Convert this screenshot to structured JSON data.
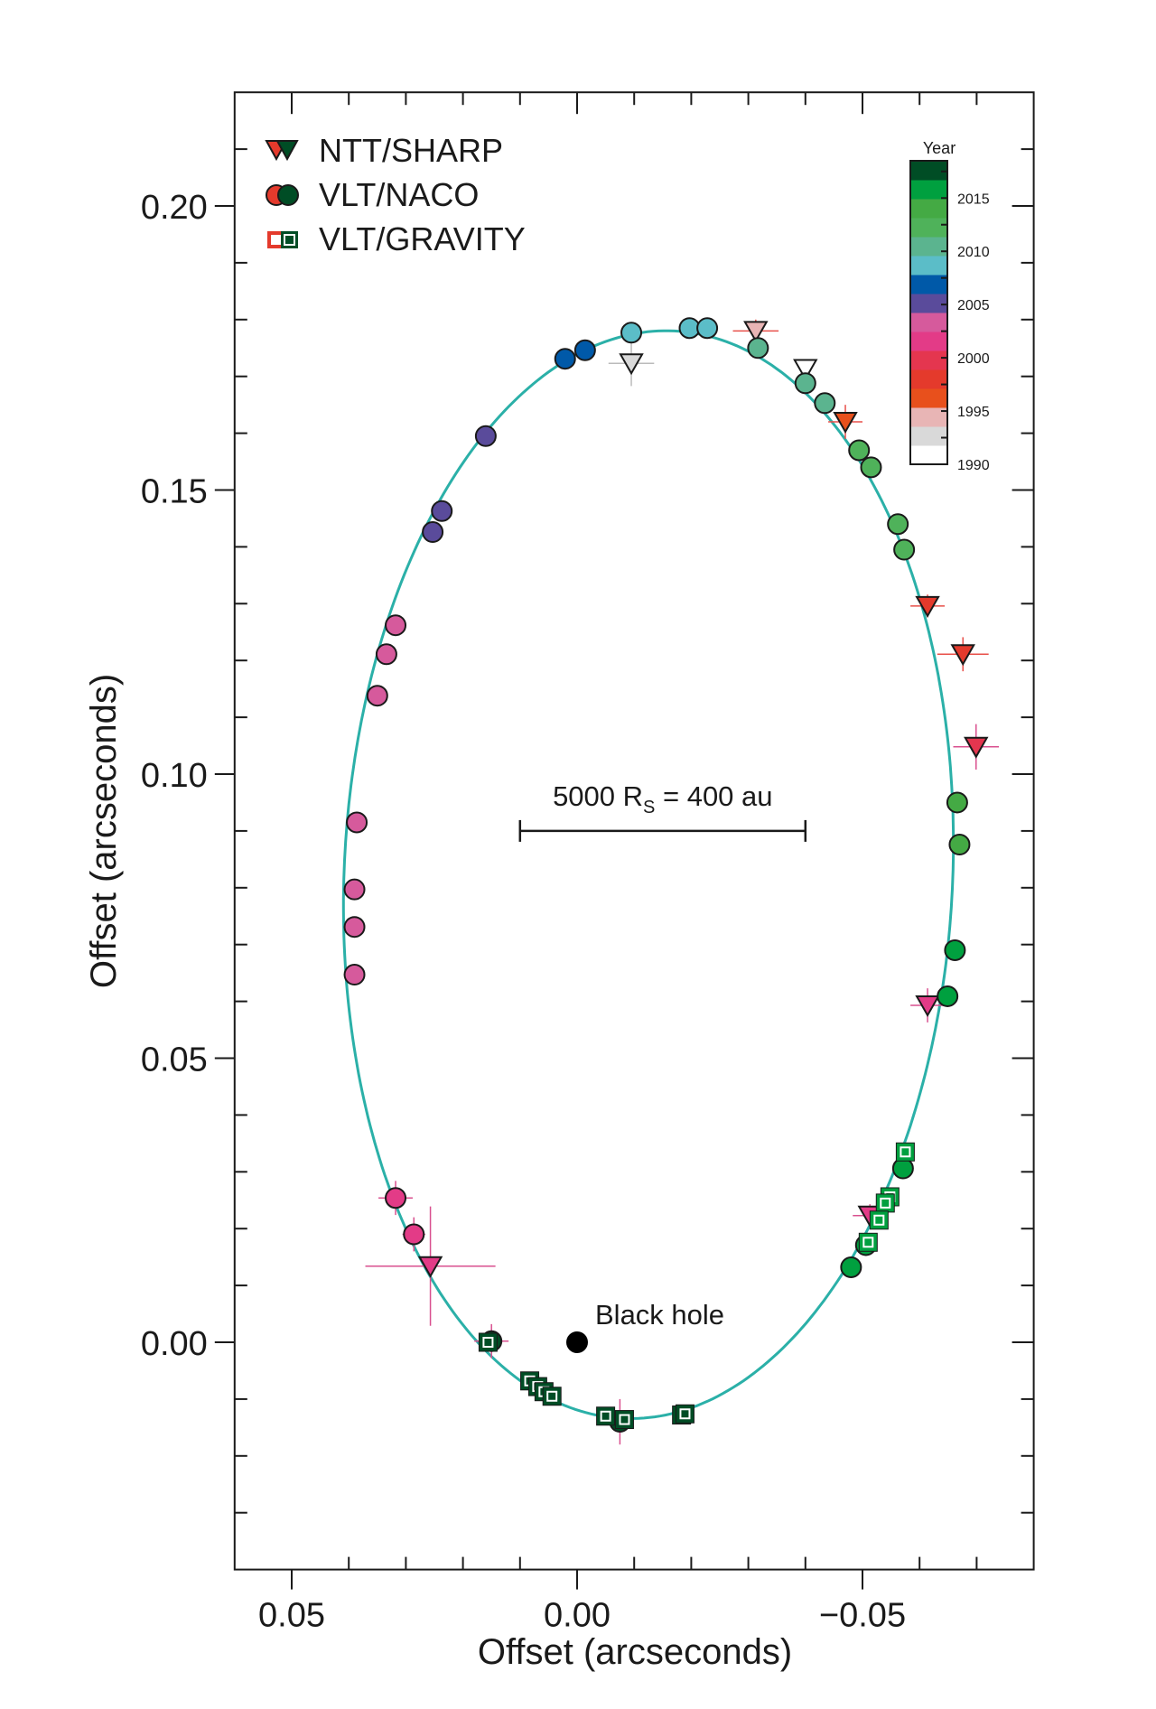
{
  "chart_data": {
    "type": "scatter",
    "title": "",
    "xlabel": "Offset (arcseconds)",
    "ylabel": "Offset (arcseconds)",
    "xlim": [
      0.06,
      -0.08
    ],
    "ylim": [
      -0.04,
      0.22
    ],
    "x_ticks": [
      0.05,
      0.0,
      -0.05
    ],
    "x_tick_labels": [
      "0.05",
      "0.00",
      "−0.05"
    ],
    "y_ticks": [
      0.2,
      0.15,
      0.1,
      0.05,
      0.0
    ],
    "y_tick_labels": [
      "0.20",
      "0.15",
      "0.10",
      "0.05",
      "0.00"
    ],
    "grid": false,
    "orbit_color": "#2bb0a8",
    "legend": {
      "placement": "top-left",
      "entries": [
        {
          "label": "NTT/SHARP",
          "marker": "triangle"
        },
        {
          "label": "VLT/NACO",
          "marker": "circle"
        },
        {
          "label": "VLT/GRAVITY",
          "marker": "square"
        }
      ]
    },
    "colorbar": {
      "title": "Year",
      "range": [
        1990,
        2018.5
      ],
      "tick_labels": [
        "2015",
        "2010",
        "2005",
        "2000",
        "1995",
        "1990"
      ],
      "tick_values": [
        2015,
        2010,
        2005,
        2000,
        1995,
        1990
      ],
      "colors_bottom_to_top": [
        "#ffffff",
        "#d9d9d9",
        "#e8b5b5",
        "#e8501c",
        "#e43a2c",
        "#e4364f",
        "#e33b87",
        "#d65a9c",
        "#5a4b9b",
        "#0059a8",
        "#5bbdc8",
        "#5bb48f",
        "#4fb25a",
        "#44aa44",
        "#00a03f",
        "#004d25"
      ]
    },
    "scale_bar": {
      "label_main": "5000 R",
      "label_sub": "S",
      "label_rest": " = 400 au",
      "x_from": 0.01,
      "x_to": -0.04,
      "y": 0.09
    },
    "black_hole": {
      "label": "Black hole",
      "x": 0.0,
      "y": 0.0
    },
    "series": [
      {
        "name": "NTT/SHARP",
        "marker": "triangle",
        "points": [
          {
            "x": -0.04,
            "y": 0.1713,
            "year": 1991
          },
          {
            "x": -0.0095,
            "y": 0.1723,
            "year": 1992.5,
            "xerr": 0.004,
            "yerr": 0.004
          },
          {
            "x": -0.0313,
            "y": 0.178,
            "year": 1994.5,
            "xerr": 0.004,
            "yerr": 0.002
          },
          {
            "x": -0.047,
            "y": 0.162,
            "year": 1996,
            "xerr": 0.003,
            "yerr": 0.003
          },
          {
            "x": -0.0614,
            "y": 0.1296,
            "year": 1998,
            "xerr": 0.003,
            "yerr": 0.002
          },
          {
            "x": -0.0676,
            "y": 0.1211,
            "year": 1998,
            "xerr": 0.0045,
            "yerr": 0.003
          },
          {
            "x": -0.0699,
            "y": 0.1048,
            "year": 2000,
            "xerr": 0.004,
            "yerr": 0.004
          },
          {
            "x": -0.0614,
            "y": 0.0593,
            "year": 2001.5,
            "xerr": 0.003,
            "yerr": 0.003
          },
          {
            "x": -0.0513,
            "y": 0.0223,
            "year": 2002,
            "xerr": 0.003,
            "yerr": 0.002
          },
          {
            "x": 0.0257,
            "y": 0.0134,
            "year": 2002,
            "xerr": 0.0114,
            "yerr": 0.0105
          }
        ]
      },
      {
        "name": "VLT/NACO",
        "marker": "circle",
        "points": [
          {
            "x": 0.0318,
            "y": 0.0254,
            "year": 2002,
            "xerr": 0.003,
            "yerr": 0.003
          },
          {
            "x": 0.0286,
            "y": 0.019,
            "year": 2002,
            "xerr": 0.002,
            "yerr": 0.003
          },
          {
            "x": 0.0318,
            "y": 0.1262,
            "year": 2003
          },
          {
            "x": 0.0334,
            "y": 0.1211,
            "year": 2003
          },
          {
            "x": 0.035,
            "y": 0.1138,
            "year": 2003
          },
          {
            "x": 0.0386,
            "y": 0.0915,
            "year": 2003
          },
          {
            "x": 0.039,
            "y": 0.0797,
            "year": 2003
          },
          {
            "x": 0.039,
            "y": 0.0731,
            "year": 2003
          },
          {
            "x": 0.039,
            "y": 0.0647,
            "year": 2003
          },
          {
            "x": 0.016,
            "y": 0.1595,
            "year": 2005
          },
          {
            "x": 0.0237,
            "y": 0.1463,
            "year": 2005
          },
          {
            "x": 0.0253,
            "y": 0.1426,
            "year": 2005
          },
          {
            "x": 0.0021,
            "y": 0.1731,
            "year": 2006.5
          },
          {
            "x": -0.0014,
            "y": 0.1746,
            "year": 2006.5
          },
          {
            "x": -0.0095,
            "y": 0.1777,
            "year": 2008.5
          },
          {
            "x": -0.0197,
            "y": 0.1785,
            "year": 2008.5
          },
          {
            "x": -0.0228,
            "y": 0.1785,
            "year": 2008.5
          },
          {
            "x": -0.0317,
            "y": 0.175,
            "year": 2010.5
          },
          {
            "x": -0.04,
            "y": 0.1688,
            "year": 2010.5
          },
          {
            "x": -0.0434,
            "y": 0.1653,
            "year": 2010.5
          },
          {
            "x": -0.0494,
            "y": 0.157,
            "year": 2012
          },
          {
            "x": -0.0515,
            "y": 0.154,
            "year": 2012
          },
          {
            "x": -0.0562,
            "y": 0.144,
            "year": 2012
          },
          {
            "x": -0.0573,
            "y": 0.1395,
            "year": 2012
          },
          {
            "x": -0.0666,
            "y": 0.095,
            "year": 2014
          },
          {
            "x": -0.067,
            "y": 0.0876,
            "year": 2014
          },
          {
            "x": -0.0662,
            "y": 0.069,
            "year": 2015.5
          },
          {
            "x": -0.0649,
            "y": 0.0609,
            "year": 2015.5
          },
          {
            "x": -0.0571,
            "y": 0.0306,
            "year": 2016
          },
          {
            "x": -0.0506,
            "y": 0.0171,
            "year": 2016
          },
          {
            "x": -0.048,
            "y": 0.0132,
            "year": 2016
          },
          {
            "x": 0.015,
            "y": 0.0002,
            "year": 2018,
            "xerr": 0.003,
            "yerr": 0.003
          },
          {
            "x": -0.0075,
            "y": -0.014,
            "year": 2018,
            "xerr": 0.002,
            "yerr": 0.004
          }
        ]
      },
      {
        "name": "VLT/GRAVITY",
        "marker": "square",
        "points": [
          {
            "x": -0.0575,
            "y": 0.0335,
            "year": 2016
          },
          {
            "x": -0.0548,
            "y": 0.0256,
            "year": 2016
          },
          {
            "x": -0.054,
            "y": 0.0245,
            "year": 2016
          },
          {
            "x": -0.0529,
            "y": 0.0215,
            "year": 2016
          },
          {
            "x": -0.051,
            "y": 0.0176,
            "year": 2016
          },
          {
            "x": 0.0156,
            "y": 0.0,
            "year": 2018
          },
          {
            "x": 0.0083,
            "y": -0.0068,
            "year": 2018
          },
          {
            "x": 0.0069,
            "y": -0.0078,
            "year": 2018
          },
          {
            "x": 0.0058,
            "y": -0.0087,
            "year": 2018
          },
          {
            "x": 0.0044,
            "y": -0.0095,
            "year": 2018
          },
          {
            "x": -0.005,
            "y": -0.013,
            "year": 2018
          },
          {
            "x": -0.0083,
            "y": -0.0136,
            "year": 2018
          },
          {
            "x": -0.0183,
            "y": -0.0128,
            "year": 2018
          },
          {
            "x": -0.0189,
            "y": -0.0126,
            "year": 2018
          }
        ]
      }
    ]
  }
}
